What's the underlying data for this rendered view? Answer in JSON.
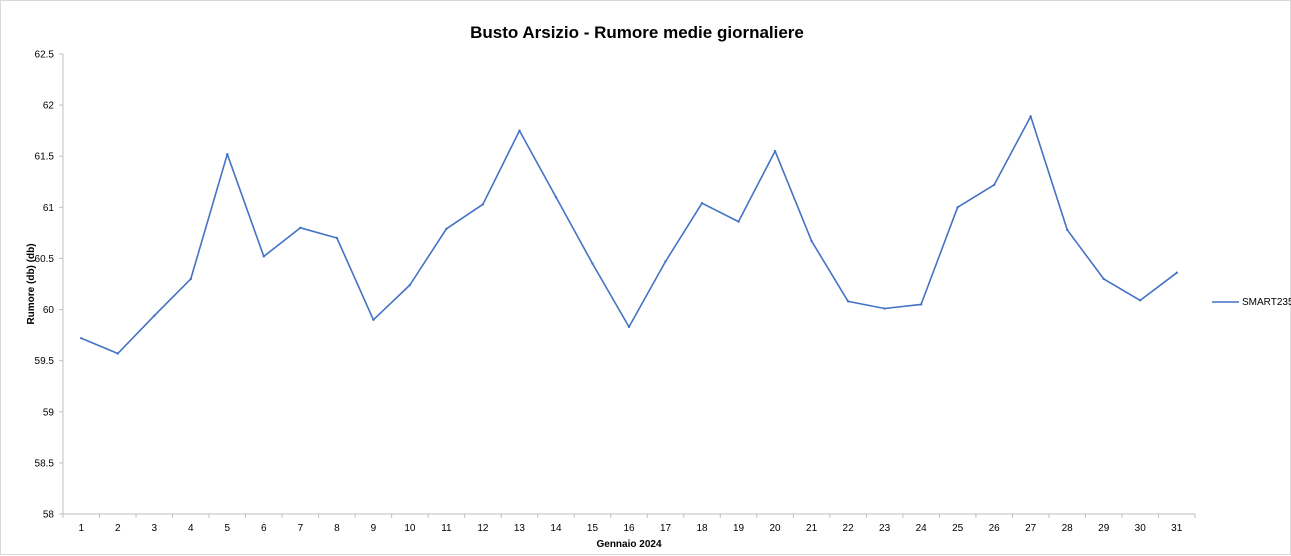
{
  "chart_data": {
    "type": "line",
    "title": "Busto Arsizio - Rumore medie giornaliere",
    "xlabel": "Gennaio 2024",
    "ylabel": "Rumore (db) (db)",
    "categories": [
      "1",
      "2",
      "3",
      "4",
      "5",
      "6",
      "7",
      "8",
      "9",
      "10",
      "11",
      "12",
      "13",
      "14",
      "15",
      "16",
      "17",
      "18",
      "19",
      "20",
      "21",
      "22",
      "23",
      "24",
      "25",
      "26",
      "27",
      "28",
      "29",
      "30",
      "31"
    ],
    "y_ticks": [
      "58",
      "58.5",
      "59",
      "59.5",
      "60",
      "60.5",
      "61",
      "61.5",
      "62",
      "62.5"
    ],
    "ylim": [
      58,
      62.5
    ],
    "grid": false,
    "legend_position": "right",
    "series": [
      {
        "name": "SMART235",
        "color": "#4472c4",
        "values": [
          59.72,
          59.57,
          59.94,
          60.3,
          61.52,
          60.52,
          60.8,
          60.7,
          59.9,
          60.24,
          60.79,
          61.03,
          61.75,
          61.1,
          60.45,
          59.83,
          60.47,
          61.04,
          60.86,
          61.55,
          60.67,
          60.08,
          60.01,
          60.05,
          61.0,
          61.22,
          61.89,
          60.78,
          60.3,
          60.09,
          60.36
        ]
      }
    ]
  }
}
